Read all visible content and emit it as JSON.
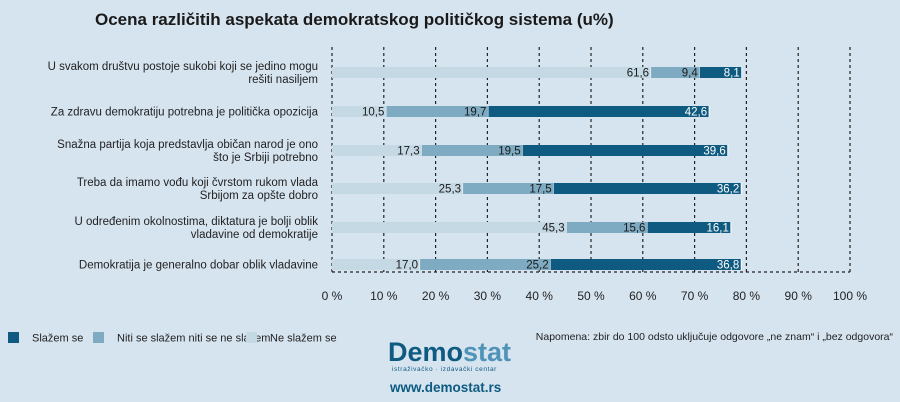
{
  "chart_data": {
    "type": "bar",
    "orientation": "horizontal",
    "stacked": true,
    "title": "Ocena različitih aspekata demokratskog političkog sistema (u%)",
    "categories": [
      [
        "U svakom društvu postoje sukobi koji se jedino mogu",
        "rešiti nasiljem"
      ],
      [
        "Za zdravu demokratiju potrebna je politička opozicija"
      ],
      [
        "Snažna partija koja predstavlja običan narod je ono",
        "što je Srbiji potrebno"
      ],
      [
        "Treba da imamo vođu koji čvrstom rukom vlada",
        "Srbijom za opšte dobro"
      ],
      [
        "U određenim okolnostima, diktatura je bolji oblik",
        "vladavine od demokratije"
      ],
      [
        "Demokratija je generalno dobar oblik vladavine"
      ]
    ],
    "series": [
      {
        "name": "Ne slažem se",
        "color": "#c5d9e5",
        "values": [
          61.6,
          10.5,
          17.3,
          25.3,
          45.3,
          17.0
        ],
        "labels": [
          "61,6",
          "10,5",
          "17,3",
          "25,3",
          "45,3",
          "17,0"
        ]
      },
      {
        "name": "Niti se slažem niti se ne slažem",
        "color": "#7fabc2",
        "values": [
          9.4,
          19.7,
          19.5,
          17.5,
          15.6,
          25.2
        ],
        "labels": [
          "9,4",
          "19,7",
          "19,5",
          "17,5",
          "15,6",
          "25,2"
        ]
      },
      {
        "name": "Slažem se",
        "color": "#0e5a80",
        "values": [
          8.1,
          42.6,
          39.6,
          36.2,
          16.1,
          36.8
        ],
        "labels": [
          "8,1",
          "42,6",
          "39,6",
          "36,2",
          "16,1",
          "36,8"
        ]
      }
    ],
    "legend_order": [
      2,
      1,
      0
    ],
    "xlim": [
      0,
      100
    ],
    "xticks": [
      0,
      10,
      20,
      30,
      40,
      50,
      60,
      70,
      80,
      90,
      100
    ],
    "xtick_labels": [
      "0 %",
      "10 %",
      "20 %",
      "30 %",
      "40 %",
      "50 %",
      "60 %",
      "70 %",
      "80 %",
      "90 %",
      "100 %"
    ],
    "grid": true,
    "legend_position": "bottom-left"
  },
  "note": "Napomena: zbir do 100 odsto uključuje odgovore „ne znam“ i „bez odgovora“",
  "brand": {
    "name_part1": "Demo",
    "name_part2": "stat",
    "subtitle": "istraživačko · izdavački  centar",
    "url": "www.demostat.rs"
  }
}
